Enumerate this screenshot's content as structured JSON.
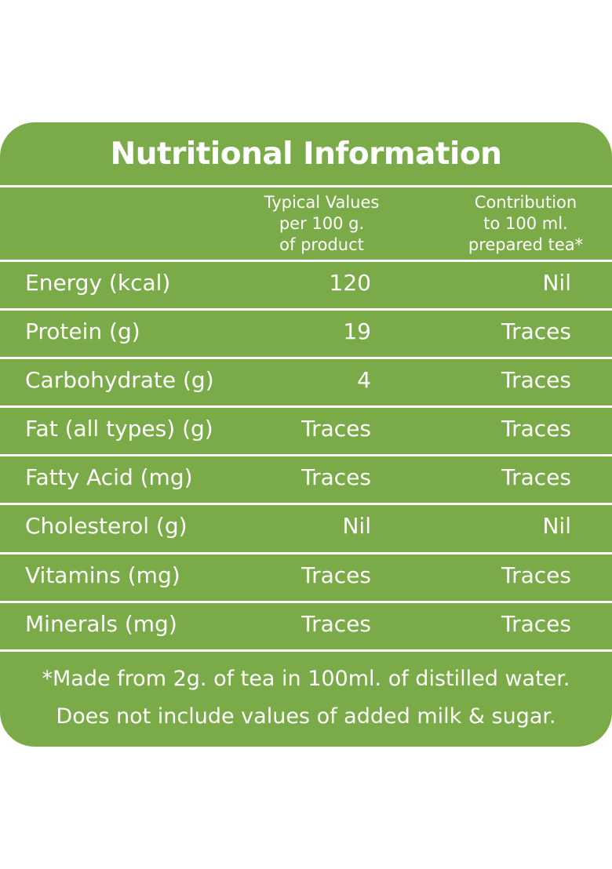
{
  "title": "Nutritional Information",
  "colors": {
    "panel": "#7aab48",
    "text": "#ffffff",
    "background": "#ffffff"
  },
  "header": {
    "col1": [
      "Typical Values",
      "per 100 g.",
      "of product"
    ],
    "col2": [
      "Contribution",
      "to 100 ml.",
      "prepared tea*"
    ]
  },
  "rows": [
    {
      "label": "Energy (kcal)",
      "per100g": "120",
      "per100ml": "Nil"
    },
    {
      "label": "Protein (g)",
      "per100g": "19",
      "per100ml": "Traces"
    },
    {
      "label": "Carbohydrate (g)",
      "per100g": "4",
      "per100ml": "Traces"
    },
    {
      "label": "Fat (all types) (g)",
      "per100g": "Traces",
      "per100ml": "Traces"
    },
    {
      "label": "Fatty Acid (mg)",
      "per100g": "Traces",
      "per100ml": "Traces"
    },
    {
      "label": "Cholesterol (g)",
      "per100g": "Nil",
      "per100ml": "Nil"
    },
    {
      "label": "Vitamins (mg)",
      "per100g": "Traces",
      "per100ml": "Traces"
    },
    {
      "label": "Minerals (mg)",
      "per100g": "Traces",
      "per100ml": "Traces"
    }
  ],
  "footnote": [
    "*Made from 2g. of tea in 100ml. of distilled water.",
    "Does not include values of added milk & sugar."
  ]
}
